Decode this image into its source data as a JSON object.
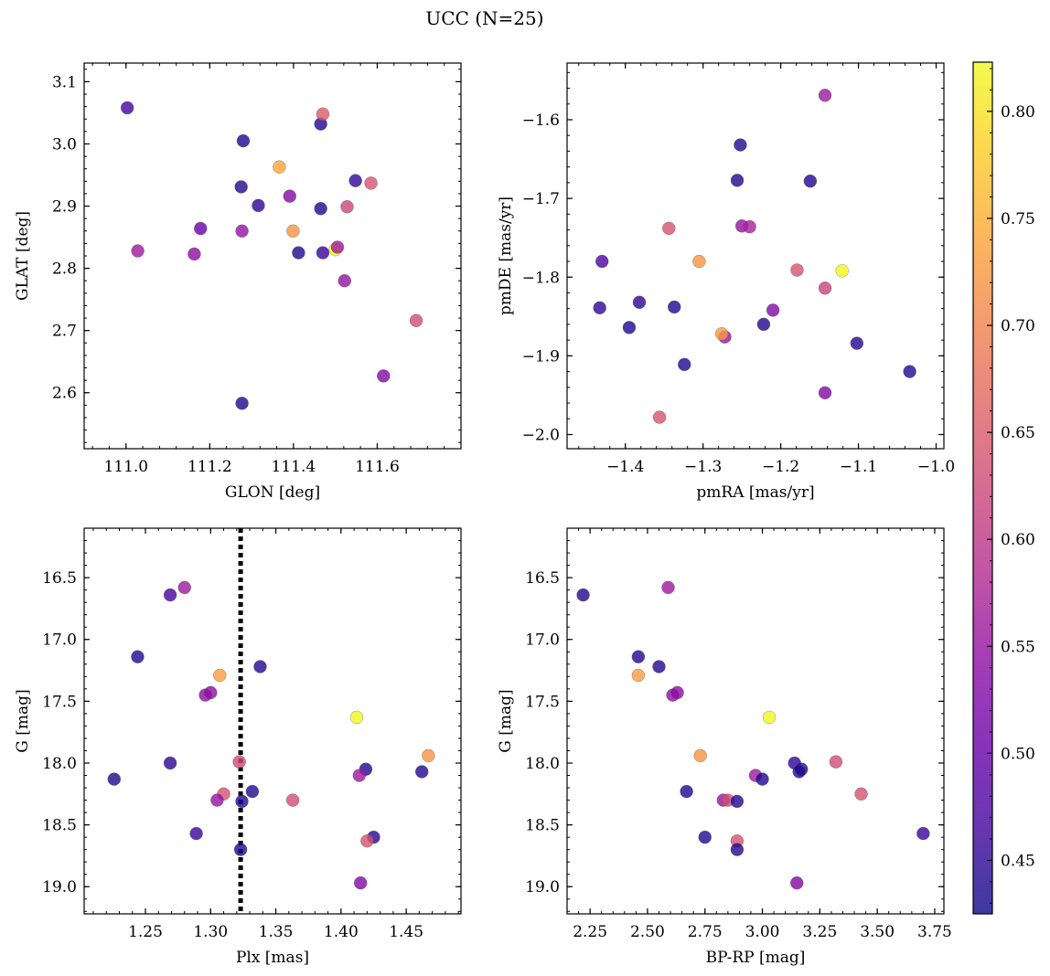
{
  "figure": {
    "suptitle": "UCC (N=25)"
  },
  "colors": {
    "colormap": "plasma",
    "axis": "#000000",
    "marker_edge": "#555555",
    "guide_line": "#000000"
  },
  "colorbar": {
    "vmin": 0.425,
    "vmax": 0.823,
    "ticks": [
      0.45,
      0.5,
      0.55,
      0.6,
      0.65,
      0.7,
      0.75,
      0.8
    ],
    "tick_labels": [
      "0.45",
      "0.50",
      "0.55",
      "0.60",
      "0.65",
      "0.70",
      "0.75",
      "0.80"
    ]
  },
  "chart_data": [
    {
      "id": "glon-glat",
      "type": "scatter",
      "xlabel": "GLON [deg]",
      "ylabel": "GLAT [deg]",
      "xlim": [
        110.9,
        111.8
      ],
      "ylim": [
        2.51,
        3.13
      ],
      "xticks": [
        111.0,
        111.2,
        111.4,
        111.6
      ],
      "xtick_labels": [
        "111.0",
        "111.2",
        "111.4",
        "111.6"
      ],
      "yticks": [
        2.6,
        2.7,
        2.8,
        2.9,
        3.0,
        3.1
      ],
      "ytick_labels": [
        "2.6",
        "2.7",
        "2.8",
        "2.9",
        "3.0",
        "3.1"
      ],
      "x_minor_step": 0.04,
      "y_minor_step": 0.02,
      "points": [
        {
          "x": 111.003,
          "y": 3.058,
          "c": 0.47
        },
        {
          "x": 111.028,
          "y": 2.828,
          "c": 0.56
        },
        {
          "x": 111.163,
          "y": 2.823,
          "c": 0.54
        },
        {
          "x": 111.178,
          "y": 2.864,
          "c": 0.5
        },
        {
          "x": 111.275,
          "y": 2.931,
          "c": 0.44
        },
        {
          "x": 111.277,
          "y": 2.86,
          "c": 0.55
        },
        {
          "x": 111.28,
          "y": 3.005,
          "c": 0.44
        },
        {
          "x": 111.277,
          "y": 2.583,
          "c": 0.44
        },
        {
          "x": 111.316,
          "y": 2.901,
          "c": 0.45
        },
        {
          "x": 111.366,
          "y": 2.963,
          "c": 0.74
        },
        {
          "x": 111.391,
          "y": 2.916,
          "c": 0.53
        },
        {
          "x": 111.399,
          "y": 2.86,
          "c": 0.72
        },
        {
          "x": 111.412,
          "y": 2.825,
          "c": 0.44
        },
        {
          "x": 111.465,
          "y": 3.032,
          "c": 0.44
        },
        {
          "x": 111.465,
          "y": 2.896,
          "c": 0.44
        },
        {
          "x": 111.47,
          "y": 3.048,
          "c": 0.65
        },
        {
          "x": 111.47,
          "y": 2.825,
          "c": 0.46
        },
        {
          "x": 111.5,
          "y": 2.83,
          "c": 0.82
        },
        {
          "x": 111.505,
          "y": 2.834,
          "c": 0.56
        },
        {
          "x": 111.522,
          "y": 2.78,
          "c": 0.55
        },
        {
          "x": 111.528,
          "y": 2.899,
          "c": 0.62
        },
        {
          "x": 111.548,
          "y": 2.941,
          "c": 0.45
        },
        {
          "x": 111.585,
          "y": 2.937,
          "c": 0.64
        },
        {
          "x": 111.615,
          "y": 2.627,
          "c": 0.53
        },
        {
          "x": 111.693,
          "y": 2.716,
          "c": 0.63
        }
      ]
    },
    {
      "id": "pmra-pmde",
      "type": "scatter",
      "xlabel": "pmRA [mas/yr]",
      "ylabel": "pmDE [mas/yr]",
      "xlim": [
        -1.475,
        -0.99
      ],
      "ylim": [
        -2.018,
        -1.528
      ],
      "xticks": [
        -1.4,
        -1.3,
        -1.2,
        -1.1,
        -1.0
      ],
      "xtick_labels": [
        "−1.4",
        "−1.3",
        "−1.2",
        "−1.1",
        "−1.0"
      ],
      "yticks": [
        -2.0,
        -1.9,
        -1.8,
        -1.7,
        -1.6
      ],
      "ytick_labels": [
        "−2.0",
        "−1.9",
        "−1.8",
        "−1.7",
        "−1.6"
      ],
      "x_minor_step": 0.02,
      "y_minor_step": 0.02,
      "points": [
        {
          "x": -1.143,
          "y": -1.569,
          "c": 0.56
        },
        {
          "x": -1.252,
          "y": -1.632,
          "c": 0.44
        },
        {
          "x": -1.256,
          "y": -1.677,
          "c": 0.44
        },
        {
          "x": -1.162,
          "y": -1.678,
          "c": 0.44
        },
        {
          "x": -1.344,
          "y": -1.738,
          "c": 0.64
        },
        {
          "x": -1.25,
          "y": -1.735,
          "c": 0.55
        },
        {
          "x": -1.24,
          "y": -1.736,
          "c": 0.57
        },
        {
          "x": -1.43,
          "y": -1.78,
          "c": 0.48
        },
        {
          "x": -1.305,
          "y": -1.78,
          "c": 0.72
        },
        {
          "x": -1.179,
          "y": -1.791,
          "c": 0.64
        },
        {
          "x": -1.121,
          "y": -1.792,
          "c": 0.82
        },
        {
          "x": -1.143,
          "y": -1.814,
          "c": 0.62
        },
        {
          "x": -1.382,
          "y": -1.832,
          "c": 0.45
        },
        {
          "x": -1.433,
          "y": -1.839,
          "c": 0.45
        },
        {
          "x": -1.337,
          "y": -1.838,
          "c": 0.44
        },
        {
          "x": -1.21,
          "y": -1.842,
          "c": 0.53
        },
        {
          "x": -1.222,
          "y": -1.86,
          "c": 0.44
        },
        {
          "x": -1.395,
          "y": -1.864,
          "c": 0.44
        },
        {
          "x": -1.272,
          "y": -1.876,
          "c": 0.55
        },
        {
          "x": -1.276,
          "y": -1.872,
          "c": 0.73
        },
        {
          "x": -1.102,
          "y": -1.884,
          "c": 0.44
        },
        {
          "x": -1.324,
          "y": -1.911,
          "c": 0.44
        },
        {
          "x": -1.034,
          "y": -1.92,
          "c": 0.44
        },
        {
          "x": -1.143,
          "y": -1.947,
          "c": 0.53
        },
        {
          "x": -1.356,
          "y": -1.978,
          "c": 0.64
        }
      ]
    },
    {
      "id": "plx-g",
      "type": "scatter",
      "xlabel": "Plx [mas]",
      "ylabel": "G [mag]",
      "xlim": [
        1.203,
        1.492
      ],
      "ylim": [
        19.22,
        16.1
      ],
      "y_inverted": true,
      "xticks": [
        1.25,
        1.3,
        1.35,
        1.4,
        1.45
      ],
      "xtick_labels": [
        "1.25",
        "1.30",
        "1.35",
        "1.40",
        "1.45"
      ],
      "yticks": [
        16.5,
        17.0,
        17.5,
        18.0,
        18.5,
        19.0
      ],
      "ytick_labels": [
        "16.5",
        "17.0",
        "17.5",
        "18.0",
        "18.5",
        "19.0"
      ],
      "x_minor_step": 0.01,
      "y_minor_step": 0.1,
      "vline": 1.323,
      "points": [
        {
          "x": 1.269,
          "y": 16.64,
          "c": 0.47
        },
        {
          "x": 1.28,
          "y": 16.58,
          "c": 0.56
        },
        {
          "x": 1.244,
          "y": 17.14,
          "c": 0.44
        },
        {
          "x": 1.307,
          "y": 17.29,
          "c": 0.73
        },
        {
          "x": 1.338,
          "y": 17.22,
          "c": 0.44
        },
        {
          "x": 1.296,
          "y": 17.45,
          "c": 0.54
        },
        {
          "x": 1.3,
          "y": 17.43,
          "c": 0.54
        },
        {
          "x": 1.412,
          "y": 17.63,
          "c": 0.82
        },
        {
          "x": 1.269,
          "y": 18.0,
          "c": 0.45
        },
        {
          "x": 1.322,
          "y": 17.99,
          "c": 0.63
        },
        {
          "x": 1.467,
          "y": 17.94,
          "c": 0.72
        },
        {
          "x": 1.419,
          "y": 18.05,
          "c": 0.44
        },
        {
          "x": 1.462,
          "y": 18.07,
          "c": 0.44
        },
        {
          "x": 1.414,
          "y": 18.1,
          "c": 0.56
        },
        {
          "x": 1.226,
          "y": 18.13,
          "c": 0.44
        },
        {
          "x": 1.31,
          "y": 18.25,
          "c": 0.64
        },
        {
          "x": 1.332,
          "y": 18.23,
          "c": 0.44
        },
        {
          "x": 1.305,
          "y": 18.3,
          "c": 0.55
        },
        {
          "x": 1.324,
          "y": 18.31,
          "c": 0.44
        },
        {
          "x": 1.363,
          "y": 18.3,
          "c": 0.63
        },
        {
          "x": 1.289,
          "y": 18.57,
          "c": 0.46
        },
        {
          "x": 1.425,
          "y": 18.6,
          "c": 0.44
        },
        {
          "x": 1.42,
          "y": 18.63,
          "c": 0.64
        },
        {
          "x": 1.323,
          "y": 18.7,
          "c": 0.44
        },
        {
          "x": 1.415,
          "y": 18.97,
          "c": 0.53
        }
      ]
    },
    {
      "id": "bprp-g",
      "type": "scatter",
      "xlabel": "BP-RP [mag]",
      "ylabel": "G [mag]",
      "xlim": [
        2.15,
        3.79
      ],
      "ylim": [
        19.22,
        16.1
      ],
      "y_inverted": true,
      "xticks": [
        2.25,
        2.5,
        2.75,
        3.0,
        3.25,
        3.5,
        3.75
      ],
      "xtick_labels": [
        "2.25",
        "2.50",
        "2.75",
        "3.00",
        "3.25",
        "3.50",
        "3.75"
      ],
      "yticks": [
        16.5,
        17.0,
        17.5,
        18.0,
        18.5,
        19.0
      ],
      "ytick_labels": [
        "16.5",
        "17.0",
        "17.5",
        "18.0",
        "18.5",
        "19.0"
      ],
      "x_minor_step": 0.05,
      "y_minor_step": 0.1,
      "points": [
        {
          "x": 2.22,
          "y": 16.64,
          "c": 0.44
        },
        {
          "x": 2.59,
          "y": 16.58,
          "c": 0.56
        },
        {
          "x": 2.46,
          "y": 17.14,
          "c": 0.44
        },
        {
          "x": 2.55,
          "y": 17.22,
          "c": 0.44
        },
        {
          "x": 2.46,
          "y": 17.29,
          "c": 0.73
        },
        {
          "x": 2.61,
          "y": 17.45,
          "c": 0.54
        },
        {
          "x": 2.63,
          "y": 17.43,
          "c": 0.54
        },
        {
          "x": 3.03,
          "y": 17.63,
          "c": 0.82
        },
        {
          "x": 2.73,
          "y": 17.94,
          "c": 0.72
        },
        {
          "x": 3.14,
          "y": 18.0,
          "c": 0.45
        },
        {
          "x": 3.32,
          "y": 17.99,
          "c": 0.63
        },
        {
          "x": 3.17,
          "y": 18.05,
          "c": 0.44
        },
        {
          "x": 3.16,
          "y": 18.07,
          "c": 0.44
        },
        {
          "x": 2.97,
          "y": 18.1,
          "c": 0.56
        },
        {
          "x": 3.0,
          "y": 18.13,
          "c": 0.44
        },
        {
          "x": 2.67,
          "y": 18.23,
          "c": 0.44
        },
        {
          "x": 3.43,
          "y": 18.25,
          "c": 0.64
        },
        {
          "x": 2.83,
          "y": 18.3,
          "c": 0.55
        },
        {
          "x": 2.85,
          "y": 18.3,
          "c": 0.63
        },
        {
          "x": 2.89,
          "y": 18.31,
          "c": 0.44
        },
        {
          "x": 2.75,
          "y": 18.6,
          "c": 0.44
        },
        {
          "x": 3.7,
          "y": 18.57,
          "c": 0.46
        },
        {
          "x": 2.89,
          "y": 18.63,
          "c": 0.64
        },
        {
          "x": 2.89,
          "y": 18.7,
          "c": 0.44
        },
        {
          "x": 3.15,
          "y": 18.97,
          "c": 0.53
        }
      ]
    }
  ]
}
